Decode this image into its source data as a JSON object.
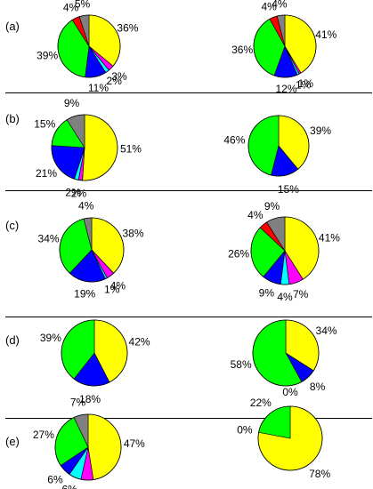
{
  "colors": {
    "yellow": "#ffff00",
    "green": "#00ff00",
    "blue": "#0000ff",
    "cyan": "#00ffff",
    "magenta": "#ff00ff",
    "red": "#ff0000",
    "gray": "#808080",
    "outline": "#000000"
  },
  "panels": [
    {
      "label": "(a)"
    },
    {
      "label": "(b)"
    },
    {
      "label": "(c)"
    },
    {
      "label": "(d)"
    },
    {
      "label": "(e)"
    }
  ],
  "chart_data": [
    {
      "type": "pie",
      "panel": "(a)",
      "position": "left",
      "slices": [
        {
          "label": "36%",
          "value": 36,
          "color": "yellow"
        },
        {
          "label": "3%",
          "value": 3,
          "color": "magenta"
        },
        {
          "label": "2%",
          "value": 2,
          "color": "cyan"
        },
        {
          "label": "11%",
          "value": 11,
          "color": "blue"
        },
        {
          "label": "39%",
          "value": 39,
          "color": "green"
        },
        {
          "label": "4%",
          "value": 4,
          "color": "red"
        },
        {
          "label": "5%",
          "value": 5,
          "color": "gray"
        }
      ]
    },
    {
      "type": "pie",
      "panel": "(a)",
      "position": "right",
      "slices": [
        {
          "label": "41%",
          "value": 41,
          "color": "yellow"
        },
        {
          "label": "1%",
          "value": 1,
          "color": "magenta"
        },
        {
          "label": "1%",
          "value": 1,
          "color": "cyan"
        },
        {
          "label": "12%",
          "value": 12,
          "color": "blue"
        },
        {
          "label": "36%",
          "value": 36,
          "color": "green"
        },
        {
          "label": "4%",
          "value": 4,
          "color": "red"
        },
        {
          "label": "4%",
          "value": 4,
          "color": "gray"
        }
      ]
    },
    {
      "type": "pie",
      "panel": "(b)",
      "position": "left",
      "slices": [
        {
          "label": "51%",
          "value": 51,
          "color": "yellow"
        },
        {
          "label": "2%",
          "value": 2,
          "color": "magenta"
        },
        {
          "label": "2%",
          "value": 2,
          "color": "cyan"
        },
        {
          "label": "21%",
          "value": 21,
          "color": "blue"
        },
        {
          "label": "15%",
          "value": 15,
          "color": "green"
        },
        {
          "label": "9%",
          "value": 9,
          "color": "gray"
        }
      ]
    },
    {
      "type": "pie",
      "panel": "(b)",
      "position": "right",
      "slices": [
        {
          "label": "39%",
          "value": 39,
          "color": "yellow"
        },
        {
          "label": "15%",
          "value": 15,
          "color": "blue"
        },
        {
          "label": "46%",
          "value": 46,
          "color": "green"
        }
      ]
    },
    {
      "type": "pie",
      "panel": "(c)",
      "position": "left",
      "slices": [
        {
          "label": "38%",
          "value": 38,
          "color": "yellow"
        },
        {
          "label": "4%",
          "value": 4,
          "color": "magenta"
        },
        {
          "label": "1%",
          "value": 1,
          "color": "cyan"
        },
        {
          "label": "19%",
          "value": 19,
          "color": "blue"
        },
        {
          "label": "34%",
          "value": 34,
          "color": "green"
        },
        {
          "label": "4%",
          "value": 4,
          "color": "gray"
        }
      ]
    },
    {
      "type": "pie",
      "panel": "(c)",
      "position": "right",
      "slices": [
        {
          "label": "41%",
          "value": 41,
          "color": "yellow"
        },
        {
          "label": "7%",
          "value": 7,
          "color": "magenta"
        },
        {
          "label": "4%",
          "value": 4,
          "color": "cyan"
        },
        {
          "label": "9%",
          "value": 9,
          "color": "blue"
        },
        {
          "label": "26%",
          "value": 26,
          "color": "green"
        },
        {
          "label": "4%",
          "value": 4,
          "color": "red"
        },
        {
          "label": "9%",
          "value": 9,
          "color": "gray"
        }
      ]
    },
    {
      "type": "pie",
      "panel": "(d)",
      "position": "left",
      "slices": [
        {
          "label": "42%",
          "value": 42,
          "color": "yellow"
        },
        {
          "label": "18%",
          "value": 18,
          "color": "blue"
        },
        {
          "label": "39%",
          "value": 39,
          "color": "green"
        }
      ]
    },
    {
      "type": "pie",
      "panel": "(d)",
      "position": "right",
      "slices": [
        {
          "label": "34%",
          "value": 34,
          "color": "yellow"
        },
        {
          "label": "8%",
          "value": 8,
          "color": "blue"
        },
        {
          "label": "58%",
          "value": 58,
          "color": "green"
        }
      ]
    },
    {
      "type": "pie",
      "panel": "(e)",
      "position": "left",
      "slices": [
        {
          "label": "47%",
          "value": 47,
          "color": "yellow"
        },
        {
          "label": "6%",
          "value": 6,
          "color": "magenta"
        },
        {
          "label": "6%",
          "value": 6,
          "color": "cyan"
        },
        {
          "label": "6%",
          "value": 6,
          "color": "blue"
        },
        {
          "label": "27%",
          "value": 27,
          "color": "green"
        },
        {
          "label": "7%",
          "value": 7,
          "color": "gray"
        }
      ]
    },
    {
      "type": "pie",
      "panel": "(e)",
      "position": "right",
      "slices": [
        {
          "label": "78%",
          "value": 78,
          "color": "yellow"
        },
        {
          "label": "0%",
          "value": 0,
          "color": "blue"
        },
        {
          "label": "22%",
          "value": 22,
          "color": "green"
        },
        {
          "label": "0%",
          "value": 0,
          "color": "gray"
        }
      ]
    }
  ]
}
